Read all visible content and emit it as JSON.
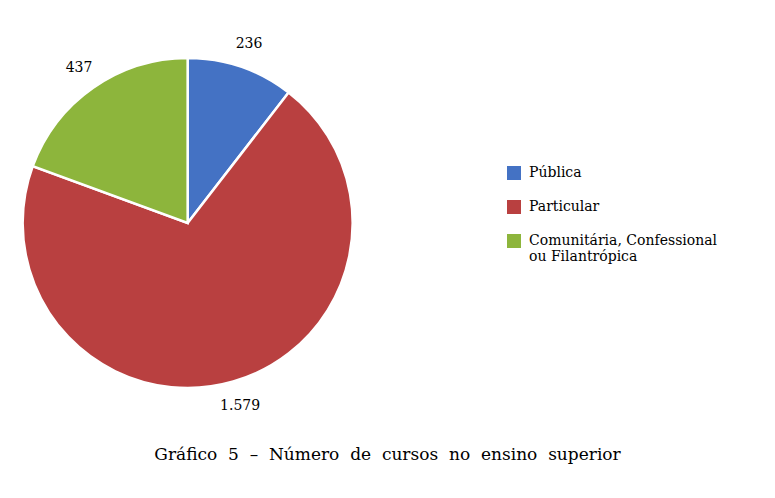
{
  "chart_data": {
    "type": "pie",
    "title": "Gráfico  5  –  Número  de  cursos  no  ensino  superior",
    "categories": [
      "Pública",
      "Particular",
      "Comunitária, Confessional\nou Filantrópica"
    ],
    "values": [
      236,
      1579,
      437
    ],
    "value_labels": [
      "236",
      "1.579",
      "437"
    ],
    "colors": [
      "#4472c4",
      "#b94040",
      "#8db53c"
    ],
    "data_labels": true,
    "legend": "right"
  }
}
